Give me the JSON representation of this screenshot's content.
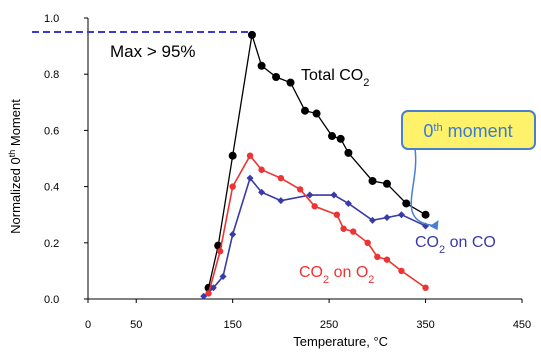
{
  "chart_data": {
    "type": "line",
    "xlabel": "Temperature, °C",
    "ylabel_prefix": "Normalized 0",
    "ylabel_sup": "th",
    "ylabel_suffix": " Moment",
    "xlim": [
      0,
      450
    ],
    "ylim": [
      0,
      1.0
    ],
    "xticks": [
      0,
      50,
      150,
      250,
      350,
      450
    ],
    "yticks": [
      0.0,
      0.2,
      0.4,
      0.6,
      0.8,
      1.0
    ],
    "ytick_labels": [
      "0.0",
      "0.2",
      "0.4",
      "0.6",
      "0.8",
      "1.0"
    ],
    "grid": false,
    "series": [
      {
        "name": "Total CO2",
        "color": "#000000",
        "marker": "circle",
        "x": [
          125,
          135,
          150,
          170,
          180,
          195,
          210,
          225,
          237,
          253,
          262,
          270,
          295,
          310,
          330,
          350
        ],
        "y": [
          0.04,
          0.19,
          0.51,
          0.94,
          0.83,
          0.79,
          0.77,
          0.67,
          0.66,
          0.58,
          0.57,
          0.52,
          0.42,
          0.41,
          0.34,
          0.3
        ]
      },
      {
        "name": "CO2 on CO",
        "color": "#3a3aa8",
        "marker": "diamond",
        "x": [
          120,
          130,
          140,
          150,
          168,
          180,
          200,
          230,
          255,
          270,
          295,
          310,
          325,
          350
        ],
        "y": [
          0.01,
          0.04,
          0.08,
          0.23,
          0.43,
          0.38,
          0.35,
          0.37,
          0.37,
          0.34,
          0.28,
          0.29,
          0.3,
          0.26
        ]
      },
      {
        "name": "CO2 on O2",
        "color": "#ee3333",
        "marker": "circle",
        "x": [
          125,
          137,
          150,
          168,
          180,
          200,
          220,
          235,
          258,
          265,
          275,
          290,
          300,
          310,
          325,
          350
        ],
        "y": [
          0.02,
          0.17,
          0.4,
          0.51,
          0.46,
          0.43,
          0.39,
          0.33,
          0.3,
          0.25,
          0.24,
          0.2,
          0.15,
          0.14,
          0.1,
          0.04
        ]
      }
    ],
    "annotations": {
      "max_line_y": 0.95,
      "max_label": "Max > 95%",
      "total_label": "Total CO",
      "total_sub": "2",
      "co_label_a": "CO",
      "co_label_sub": "2",
      "co_label_b": " on CO",
      "o2_label_a": "CO",
      "o2_label_sub": "2",
      "o2_label_b": " on O",
      "o2_label_sub2": "2",
      "callout_num": "0",
      "callout_sup": "th",
      "callout_text": " moment",
      "callout_bg": "#fdf26a",
      "callout_border": "#4a7fd0",
      "callout_text_color": "#3a7ad8"
    }
  }
}
